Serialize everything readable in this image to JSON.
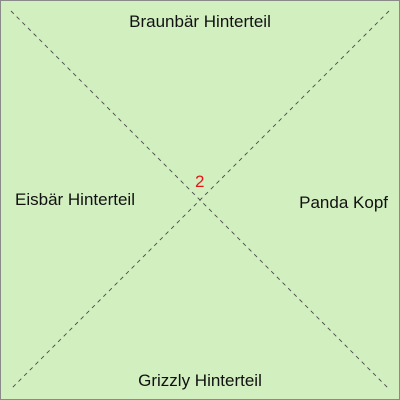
{
  "tile": {
    "background_color": "#d2efc0",
    "border_color": "#8a8a8a",
    "diagonal_color": "#4a4a4a",
    "number": "2",
    "number_color": "#e8141a",
    "edges": {
      "top": "Braunbär Hinterteil",
      "right": "Panda Kopf",
      "bottom": "Grizzly Hinterteil",
      "left": "Eisbär Hinterteil"
    }
  }
}
